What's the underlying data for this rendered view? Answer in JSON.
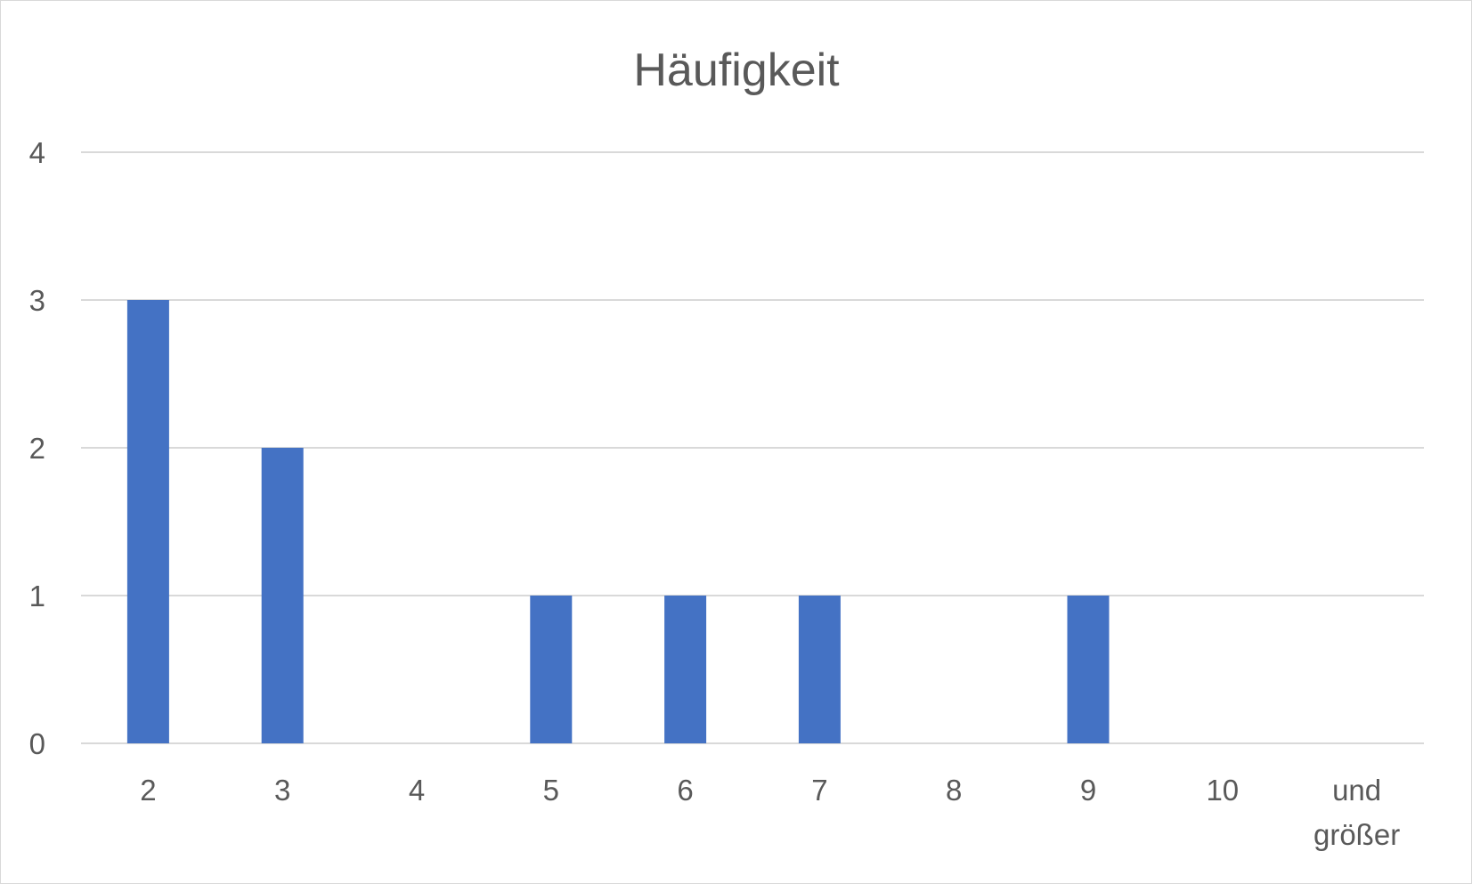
{
  "chart_data": {
    "type": "bar",
    "title": "Häufigkeit",
    "categories": [
      "2",
      "3",
      "4",
      "5",
      "6",
      "7",
      "8",
      "9",
      "10",
      "und größer"
    ],
    "series": [
      {
        "values": [
          3,
          2,
          0,
          1,
          1,
          1,
          0,
          1,
          0,
          0
        ]
      }
    ],
    "yticks": [
      0,
      1,
      2,
      3,
      4
    ],
    "ylim": [
      0,
      4
    ],
    "xlabel": "",
    "ylabel": "",
    "grid": true,
    "legend": "none",
    "bar_color": "#4472C4",
    "grid_color": "#D9D9D9",
    "text_color": "#595959"
  }
}
